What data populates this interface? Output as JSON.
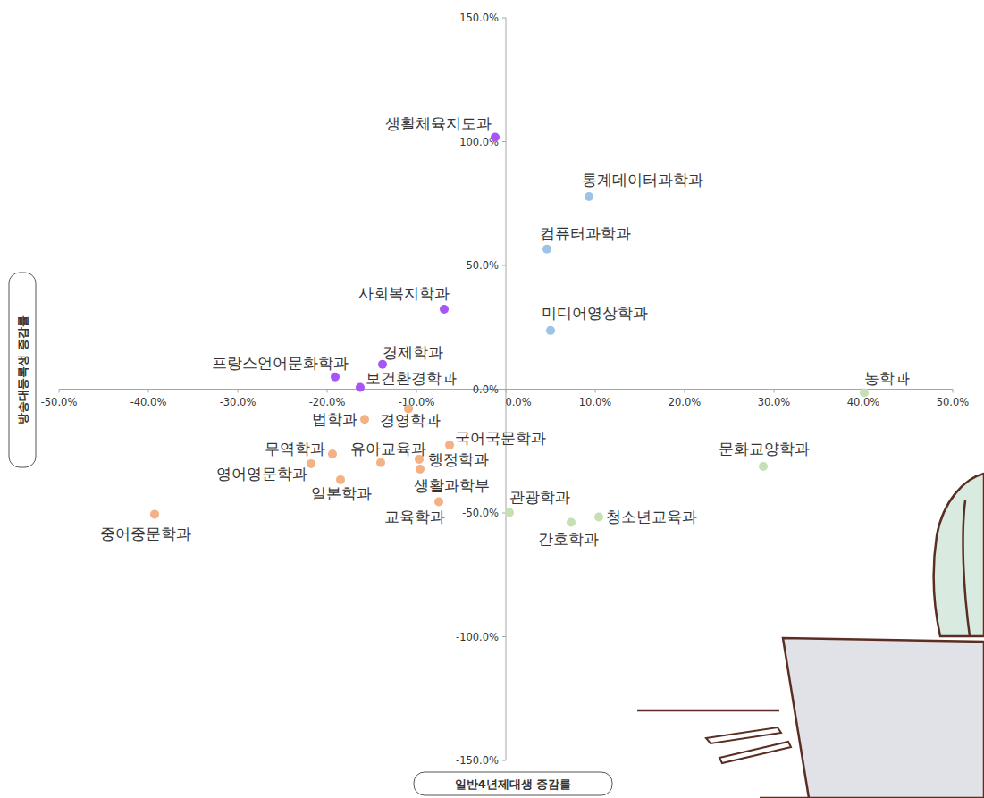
{
  "chart_data": {
    "type": "scatter",
    "x_label": "일반4년제대생 증감률",
    "y_label": "방송대등록생 증감률",
    "labels": [
      "생활체육지도과",
      "통계데이터과학과",
      "컴퓨터과학과",
      "미디어영상학과",
      "사회복지학과",
      "경제학과",
      "프랑스언어문화학과",
      "보건환경학과",
      "농학과",
      "법학과",
      "경영학과",
      "국어국문학과",
      "무역학과",
      "유아교육과",
      "행정학과",
      "생활과학부",
      "영어영문학과",
      "일본학과",
      "교육학과",
      "중어중문학과",
      "관광학과",
      "간호학과",
      "청소년교육과",
      "문화교양학과"
    ],
    "x": [
      -1.2,
      9.3,
      4.6,
      5.0,
      -6.9,
      -13.8,
      -19.1,
      -16.3,
      40.1,
      -15.8,
      -10.9,
      -6.3,
      -19.4,
      -14.0,
      -9.7,
      -9.6,
      -21.8,
      -18.5,
      -7.5,
      -39.3,
      0.4,
      7.3,
      10.4,
      28.8
    ],
    "values": [
      101.8,
      77.8,
      56.6,
      23.7,
      32.3,
      10.0,
      5.0,
      0.7,
      -1.4,
      -12.2,
      -7.9,
      -22.6,
      -26.2,
      -29.7,
      -28.3,
      -32.3,
      -30.1,
      -36.6,
      -45.5,
      -50.5,
      -49.8,
      -53.8,
      -51.6,
      -31.2
    ],
    "colors": [
      "#a855f7",
      "#9dc3e6",
      "#9dc3e6",
      "#9dc3e6",
      "#a855f7",
      "#a855f7",
      "#a855f7",
      "#a855f7",
      "#c5e0b4",
      "#f4b183",
      "#f4b183",
      "#f4b183",
      "#f4b183",
      "#f4b183",
      "#f4b183",
      "#f4b183",
      "#f4b183",
      "#f4b183",
      "#f4b183",
      "#f4b183",
      "#c5e0b4",
      "#c5e0b4",
      "#c5e0b4",
      "#c5e0b4"
    ],
    "marker": "circle",
    "grid": false,
    "xlim": [
      -50,
      50
    ],
    "ylim": [
      -150,
      150
    ],
    "xticks": [
      {
        "value": -50,
        "label": "-50.0%"
      },
      {
        "value": -40,
        "label": "-40.0%"
      },
      {
        "value": -30,
        "label": "-30.0%"
      },
      {
        "value": -20,
        "label": "-20.0%"
      },
      {
        "value": -10,
        "label": "-10.0%"
      },
      {
        "value": 0,
        "label": "0.0%"
      },
      {
        "value": 10,
        "label": "10.0%"
      },
      {
        "value": 20,
        "label": "20.0%"
      },
      {
        "value": 30,
        "label": "30.0%"
      },
      {
        "value": 40,
        "label": "40.0%"
      },
      {
        "value": 50,
        "label": "50.0%"
      }
    ],
    "yticks": [
      {
        "value": -150,
        "label": "-150.0%"
      },
      {
        "value": -100,
        "label": "-100.0%"
      },
      {
        "value": -50,
        "label": "-50.0%"
      },
      {
        "value": 0,
        "label": "0.0%"
      },
      {
        "value": 50,
        "label": "50.0%"
      },
      {
        "value": 100,
        "label": "100.0%"
      },
      {
        "value": 150,
        "label": "150.0%"
      }
    ]
  }
}
